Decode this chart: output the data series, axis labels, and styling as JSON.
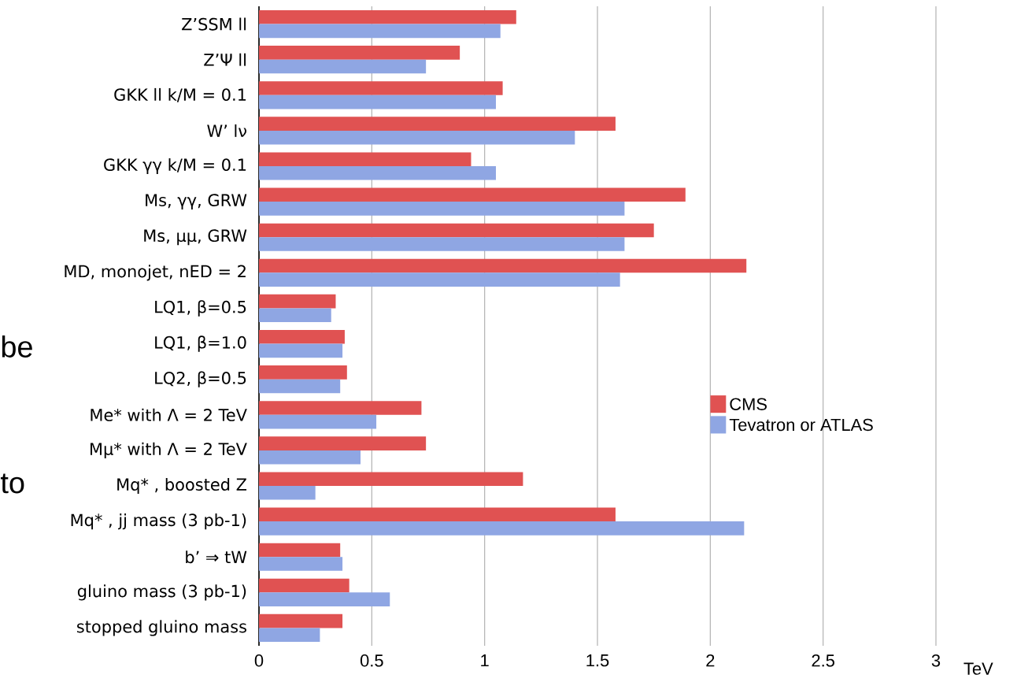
{
  "chart_data": {
    "type": "bar",
    "orientation": "horizontal",
    "xlabel": "TeV",
    "categories": [
      "Z’SSM ll",
      "Z’Ψ ll",
      "GKK ll k/M = 0.1",
      "W’ lν",
      "GKK γγ k/M = 0.1",
      "Ms, γγ, GRW",
      "Ms, μμ, GRW",
      "MD, monojet, nED = 2",
      "LQ1, β=0.5",
      "LQ1, β=1.0",
      "LQ2, β=0.5",
      "Me* with Λ = 2 TeV",
      "Mμ* with Λ = 2 TeV",
      "Mq* , boosted Z",
      "Mq* , jj mass (3 pb-1)",
      "b’ ⇒ tW",
      "gluino mass (3 pb-1)",
      "stopped gluino mass"
    ],
    "series": [
      {
        "name": "CMS",
        "color": "#e05252",
        "values": [
          1.14,
          0.89,
          1.08,
          1.58,
          0.94,
          1.89,
          1.75,
          2.16,
          0.34,
          0.38,
          0.39,
          0.72,
          0.74,
          1.17,
          1.58,
          0.36,
          0.4,
          0.37
        ]
      },
      {
        "name": "Tevatron or ATLAS",
        "color": "#8fa6e3",
        "values": [
          1.07,
          0.74,
          1.05,
          1.4,
          1.05,
          1.62,
          1.62,
          1.6,
          0.32,
          0.37,
          0.36,
          0.52,
          0.45,
          0.25,
          2.15,
          0.37,
          0.58,
          0.27
        ]
      }
    ],
    "xlim": [
      0,
      3
    ],
    "xticks": [
      0,
      0.5,
      1,
      1.5,
      2,
      2.5,
      3
    ],
    "grid": "x",
    "legend": "right",
    "annotations": [
      "be",
      "to"
    ]
  }
}
